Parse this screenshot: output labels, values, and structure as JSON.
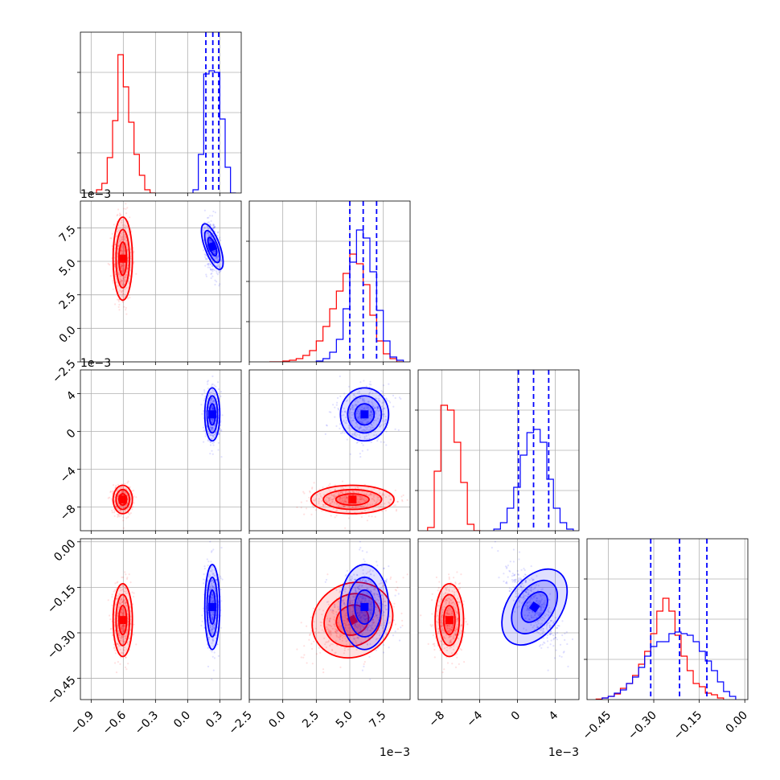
{
  "chart_data": {
    "type": "corner",
    "grid": true,
    "series": [
      {
        "name": "",
        "color": "#ff0000"
      },
      {
        "name": "",
        "color": "#0000ff"
      }
    ],
    "quantile_color": "#0000ff",
    "parameters": [
      {
        "range": [
          -1.0,
          0.5
        ],
        "ticks": [
          -0.9,
          -0.6,
          -0.3,
          0.0,
          0.3
        ],
        "tick_labels": [
          "−0.9",
          "−0.6",
          "−0.3",
          "0.0",
          "0.3"
        ],
        "exponent": ""
      },
      {
        "range": [
          -0.0025,
          0.0095
        ],
        "ticks": [
          -0.0025,
          0.0,
          0.0025,
          0.005,
          0.0075
        ],
        "tick_labels": [
          "−2.5",
          "0.0",
          "2.5",
          "5.0",
          "7.5"
        ],
        "exponent": "1e−3"
      },
      {
        "range": [
          -0.0105,
          0.0065
        ],
        "ticks": [
          -0.008,
          -0.004,
          0.0,
          0.004
        ],
        "tick_labels": [
          "−8",
          "−4",
          "0",
          "4"
        ],
        "exponent": "1e−3"
      },
      {
        "range": [
          -0.52,
          0.01
        ],
        "ticks": [
          -0.45,
          -0.3,
          -0.15,
          0.0
        ],
        "tick_labels": [
          "−0.45",
          "−0.30",
          "−0.15",
          "0.00"
        ],
        "exponent": ""
      }
    ],
    "blue_quantiles": [
      [
        0.17,
        0.235,
        0.29
      ],
      [
        0.005,
        0.006,
        0.007
      ],
      [
        0.0001,
        0.0017,
        0.0033
      ],
      [
        -0.31,
        -0.215,
        -0.125
      ]
    ],
    "histograms": [
      {
        "red": {
          "edges": [
            -0.85,
            -0.8,
            -0.75,
            -0.7,
            -0.65,
            -0.6,
            -0.55,
            -0.5,
            -0.45,
            -0.4,
            -0.35,
            -0.3
          ],
          "counts": [
            0.02,
            0.06,
            0.22,
            0.45,
            0.86,
            0.66,
            0.44,
            0.24,
            0.11,
            0.02,
            0.0
          ]
        },
        "blue": {
          "edges": [
            0.05,
            0.1,
            0.15,
            0.2,
            0.25,
            0.3,
            0.35,
            0.4,
            0.45
          ],
          "counts": [
            0.02,
            0.24,
            0.74,
            0.76,
            0.75,
            0.46,
            0.16,
            0.0
          ]
        }
      },
      {
        "red": {
          "edges": [
            -0.001,
            0.0,
            0.0005,
            0.001,
            0.0015,
            0.002,
            0.0025,
            0.003,
            0.0035,
            0.004,
            0.0045,
            0.005,
            0.0055,
            0.006,
            0.0065,
            0.007,
            0.0075,
            0.008,
            0.0085,
            0.009
          ],
          "counts": [
            0.0,
            0.005,
            0.01,
            0.02,
            0.04,
            0.07,
            0.13,
            0.22,
            0.33,
            0.44,
            0.55,
            0.67,
            0.61,
            0.48,
            0.29,
            0.13,
            0.05,
            0.02,
            0.0
          ]
        },
        "blue": {
          "edges": [
            0.0025,
            0.003,
            0.0035,
            0.004,
            0.0045,
            0.005,
            0.0055,
            0.006,
            0.0065,
            0.007,
            0.0075,
            0.008,
            0.0085,
            0.009
          ],
          "counts": [
            0.005,
            0.02,
            0.06,
            0.14,
            0.33,
            0.62,
            0.82,
            0.77,
            0.56,
            0.32,
            0.13,
            0.03,
            0.01
          ]
        }
      },
      {
        "red": {
          "edges": [
            -0.0095,
            -0.0088,
            -0.0081,
            -0.0074,
            -0.0067,
            -0.006,
            -0.0053,
            -0.0046,
            -0.0039
          ],
          "counts": [
            0.02,
            0.37,
            0.78,
            0.75,
            0.55,
            0.3,
            0.04,
            0.0
          ]
        },
        "blue": {
          "edges": [
            -0.0025,
            -0.0018,
            -0.0011,
            -0.0004,
            0.0003,
            0.001,
            0.0017,
            0.0024,
            0.0031,
            0.0038,
            0.0045,
            0.0052,
            0.0059
          ],
          "counts": [
            0.01,
            0.05,
            0.14,
            0.27,
            0.47,
            0.61,
            0.63,
            0.55,
            0.32,
            0.14,
            0.05,
            0.01
          ]
        }
      },
      {
        "red": {
          "edges": [
            -0.49,
            -0.47,
            -0.45,
            -0.43,
            -0.41,
            -0.39,
            -0.37,
            -0.35,
            -0.33,
            -0.31,
            -0.29,
            -0.27,
            -0.25,
            -0.23,
            -0.21,
            -0.19,
            -0.17,
            -0.15,
            -0.13,
            -0.11,
            -0.09,
            -0.07
          ],
          "counts": [
            0.003,
            0.01,
            0.02,
            0.035,
            0.07,
            0.1,
            0.15,
            0.22,
            0.3,
            0.41,
            0.55,
            0.63,
            0.55,
            0.4,
            0.27,
            0.18,
            0.1,
            0.08,
            0.04,
            0.03,
            0.01
          ]
        },
        "blue": {
          "edges": [
            -0.47,
            -0.45,
            -0.43,
            -0.41,
            -0.39,
            -0.37,
            -0.35,
            -0.33,
            -0.31,
            -0.29,
            -0.27,
            -0.25,
            -0.23,
            -0.21,
            -0.19,
            -0.17,
            -0.15,
            -0.13,
            -0.11,
            -0.09,
            -0.07,
            -0.05,
            -0.03
          ],
          "counts": [
            0.01,
            0.02,
            0.04,
            0.06,
            0.1,
            0.14,
            0.2,
            0.27,
            0.33,
            0.36,
            0.36,
            0.41,
            0.42,
            0.41,
            0.4,
            0.36,
            0.3,
            0.24,
            0.18,
            0.11,
            0.05,
            0.02
          ]
        }
      }
    ],
    "clouds": {
      "red": {
        "mean": [
          -0.605,
          0.0052,
          -0.0072,
          -0.258
        ],
        "sd": [
          0.045,
          0.00155,
          0.00075,
          0.06
        ],
        "n": 900
      },
      "blue": {
        "mean": [
          0.23,
          0.0061,
          0.0018,
          -0.215
        ],
        "sd": [
          0.035,
          0.0009,
          0.0014,
          0.07
        ],
        "n": 900
      }
    }
  }
}
